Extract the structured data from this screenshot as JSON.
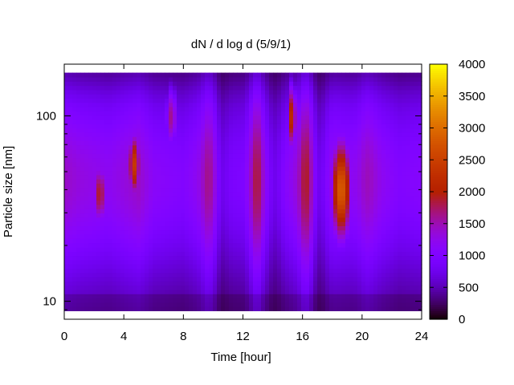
{
  "chart_data": {
    "type": "heatmap",
    "title": "dN / d log d (5/9/1)",
    "xlabel": "Time [hour]",
    "ylabel": "Particle size [nm]",
    "x_range": [
      0,
      24
    ],
    "x_ticks": [
      0,
      4,
      8,
      12,
      16,
      20,
      24
    ],
    "y_scale": "log",
    "y_range": [
      8,
      190
    ],
    "y_ticks": [
      10,
      100
    ],
    "colorbar": {
      "range": [
        0,
        4000
      ],
      "ticks": [
        0,
        500,
        1000,
        1500,
        2000,
        2500,
        3000,
        3500,
        4000
      ],
      "colormap": "gnuplot"
    },
    "hotspots": [
      {
        "t": 2.4,
        "d": 38,
        "peak": 2500
      },
      {
        "t": 4.7,
        "d": 55,
        "peak": 2900
      },
      {
        "t": 7.2,
        "d": 100,
        "peak": 2300
      },
      {
        "t": 15.3,
        "d": 100,
        "peak": 2900
      },
      {
        "t": 18.6,
        "d": 40,
        "peak": 3400
      }
    ],
    "grid": false,
    "legend": "colorbar-right"
  }
}
